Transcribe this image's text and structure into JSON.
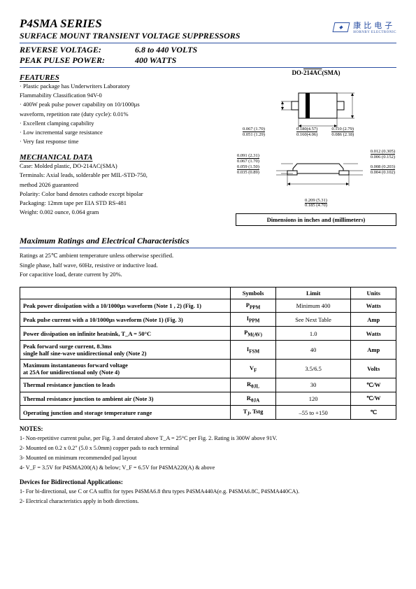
{
  "header": {
    "title": "P4SMA SERIES",
    "subtitle": "SURFACE MOUNT TRANSIENT VOLTAGE SUPPRESSORS",
    "reverse_label": "REVERSE VOLTAGE:",
    "reverse_value": "6.8 to 440 VOLTS",
    "peak_label": "PEAK PULSE POWER:",
    "peak_value": "400 WATTS",
    "logo_cn": "康比电子",
    "logo_sub": "HORNBY ELECTRONIC"
  },
  "features": {
    "heading": "FEATURES",
    "items": [
      "Plastic package has Underwriters Laboratory",
      " Flammability Classification 94V-0",
      "400W peak pulse power capability on 10/1000µs",
      " waveform, repetition rate (duty cycle): 0.01%",
      "Excellent clamping capability",
      "Low incremental surge resistance",
      "Very fast response time"
    ]
  },
  "mechanical": {
    "heading": "MECHANICAL DATA",
    "lines": [
      "Case: Molded plastic, DO-214AC(SMA)",
      "Terminals: Axial leads, solderable per MIL-STD-750,",
      "method 2026 guaranteed",
      "Polarity: Color band denotes cathode except bipolar",
      "Packaging: 12mm tape per EIA STD RS-481",
      "Weight: 0.002 ounce, 0.064 gram"
    ]
  },
  "package": {
    "title_a": "DO-",
    "title_b": "214AC",
    "title_c": "(SMA)",
    "dims_note": "Dimensions in inches and (millimeters)",
    "top": {
      "d1": "0.067 (1.70)",
      "d1b": "0.051 (1.29)",
      "d2": "0.110 (2.79)",
      "d2b": "0.086 (2.18)",
      "d3": "0.180(4.57)",
      "d3b": "0.160(4.06)"
    },
    "side": {
      "s1": "0.091 (2.31)",
      "s1b": "0.067 (1.70)",
      "s2": "0.059 (1.50)",
      "s2b": "0.035 (0.89)",
      "s3": "0.012 (0.305)",
      "s3b": "0.006 (0.152)",
      "s4": "0.008 (0.203)",
      "s4b": "0.004 (0.102)",
      "s5": "0.209 (5.31)",
      "s5b": "0.185 (4.70)"
    }
  },
  "maxratings": {
    "heading": "Maximum Ratings and Electrical Characteristics",
    "note1": "Ratings at 25℃ ambient temperature unless otherwise specified.",
    "note2": "Single phase, half wave, 60Hz, resistive or inductive load.",
    "note3": "For capacitive load, derate current by 20%.",
    "headers": {
      "sym": "Symbols",
      "lim": "Limit",
      "unit": "Units"
    },
    "rows": [
      {
        "param": "Peak power dissipation with a 10/1000µs waveform (Note 1 , 2) (Fig. 1)",
        "sym": "P_PPM",
        "lim": "Minimum 400",
        "unit": "Watts"
      },
      {
        "param": "Peak pulse current with a 10/1000µs waveform (Note 1) (Fig. 3)",
        "sym": "I_PPM",
        "lim": "See Next Table",
        "unit": "Amp"
      },
      {
        "param": "Power dissipation on infinite heatsink, T_A = 50°C",
        "sym": "P_M(AV)",
        "lim": "1.0",
        "unit": "Watts"
      },
      {
        "param": "Peak forward surge current, 8.3ms\nsingle half sine-wave unidirectional only (Note 2)",
        "sym": "I_FSM",
        "lim": "40",
        "unit": "Amp"
      },
      {
        "param": "Maximum instantaneous forward voltage\nat 25A for unidirectional only (Note 4)",
        "sym": "V_F",
        "lim": "3.5/6.5",
        "unit": "Volts"
      },
      {
        "param": "Thermal resistance junction to leads",
        "sym": "R_θJL",
        "lim": "30",
        "unit": "℃/W"
      },
      {
        "param": "Thermal resistance junction to ambient air (Note 3)",
        "sym": "R_θJA",
        "lim": "120",
        "unit": "℃/W"
      },
      {
        "param": "Operating junction and storage temperature range",
        "sym": "T_J,  Tstg",
        "lim": "–55 to +150",
        "unit": "℃"
      }
    ]
  },
  "notes": {
    "heading": "NOTES:",
    "items": [
      "1- Non-repetitive current pulse, per Fig. 3 and derated above T_A = 25°C per Fig. 2. Rating is 300W above 91V.",
      "2- Mounted on 0.2 x 0.2\" (5.0 x 5.0mm) copper pads to each terminal",
      "3- Mounted on minimum recommended pad layout",
      "4- V_F = 3.5V for P4SMA200(A) & below; V_F = 6.5V for P4SMA220(A) & above"
    ]
  },
  "devices": {
    "heading": "Devices for Bidirectional Applications:",
    "items": [
      "1- For bi-directional, use C or CA suffix for types P4SMA6.8 thru types P4SMA440A(e.g. P4SMA6.8C, P4SMA440CA).",
      "2- Electrical characteristics apply in both directions."
    ]
  }
}
